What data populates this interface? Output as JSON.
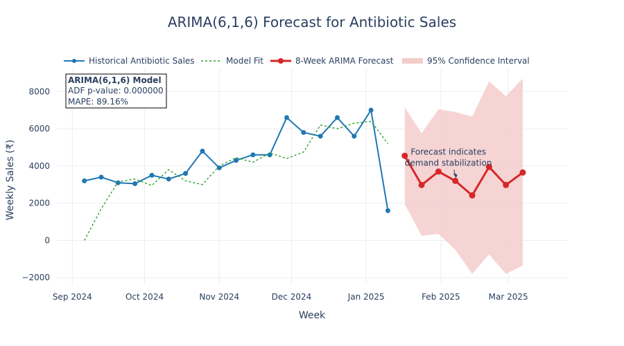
{
  "chart_data": {
    "type": "line",
    "title": "ARIMA(6,1,6) Forecast for Antibiotic Sales",
    "xlabel": "Week",
    "ylabel": "Weekly Sales (₹)",
    "xlim": [
      "2024-08-25",
      "2025-03-26"
    ],
    "ylim": [
      -2400,
      9200
    ],
    "grid": true,
    "legend_position": "top",
    "x_ticks": [
      {
        "date": "2024-09-01",
        "label": "Sep 2024"
      },
      {
        "date": "2024-10-01",
        "label": "Oct 2024"
      },
      {
        "date": "2024-11-01",
        "label": "Nov 2024"
      },
      {
        "date": "2024-12-01",
        "label": "Dec 2024"
      },
      {
        "date": "2025-01-01",
        "label": "Jan 2025"
      },
      {
        "date": "2025-02-01",
        "label": "Feb 2025"
      },
      {
        "date": "2025-03-01",
        "label": "Mar 2025"
      }
    ],
    "y_ticks": [
      {
        "value": -2000,
        "label": "−2000"
      },
      {
        "value": 0,
        "label": "0"
      },
      {
        "value": 2000,
        "label": "2000"
      },
      {
        "value": 4000,
        "label": "4000"
      },
      {
        "value": 6000,
        "label": "6000"
      },
      {
        "value": 8000,
        "label": "8000"
      }
    ],
    "series": [
      {
        "name": "Historical Antibiotic Sales",
        "color": "#1f77b4",
        "style": "solid-markers",
        "x": [
          "2024-09-06",
          "2024-09-13",
          "2024-09-20",
          "2024-09-27",
          "2024-10-04",
          "2024-10-11",
          "2024-10-18",
          "2024-10-25",
          "2024-11-01",
          "2024-11-08",
          "2024-11-15",
          "2024-11-22",
          "2024-11-29",
          "2024-12-06",
          "2024-12-13",
          "2024-12-20",
          "2024-12-27",
          "2025-01-03",
          "2025-01-10"
        ],
        "y": [
          3200,
          3400,
          3100,
          3050,
          3500,
          3300,
          3600,
          4800,
          3900,
          4300,
          4600,
          4600,
          6600,
          5800,
          5600,
          6600,
          5600,
          7000,
          1600
        ]
      },
      {
        "name": "Model Fit",
        "color": "#2ca02c",
        "style": "dotted",
        "x": [
          "2024-09-06",
          "2024-09-13",
          "2024-09-20",
          "2024-09-27",
          "2024-10-04",
          "2024-10-11",
          "2024-10-18",
          "2024-10-25",
          "2024-11-01",
          "2024-11-08",
          "2024-11-15",
          "2024-11-22",
          "2024-11-29",
          "2024-12-06",
          "2024-12-13",
          "2024-12-20",
          "2024-12-27",
          "2025-01-03",
          "2025-01-10"
        ],
        "y": [
          0,
          1700,
          3150,
          3300,
          2950,
          3800,
          3200,
          3000,
          4000,
          4450,
          4200,
          4700,
          4400,
          4750,
          6200,
          6000,
          6300,
          6400,
          5200
        ]
      },
      {
        "name": "8-Week ARIMA Forecast",
        "color": "#d62728",
        "style": "solid-markers",
        "x": [
          "2025-01-17",
          "2025-01-24",
          "2025-01-31",
          "2025-02-07",
          "2025-02-14",
          "2025-02-21",
          "2025-02-28",
          "2025-03-07"
        ],
        "y": [
          4550,
          2980,
          3700,
          3200,
          2420,
          3950,
          2980,
          3650
        ]
      }
    ],
    "confidence_interval": {
      "name": "95% Confidence Interval",
      "color": "#f4cccc",
      "x": [
        "2025-01-10",
        "2025-01-17",
        "2025-01-24",
        "2025-01-31",
        "2025-02-07",
        "2025-02-14",
        "2025-02-21",
        "2025-02-28",
        "2025-03-07"
      ],
      "upper": [
        null,
        7150,
        5750,
        7050,
        6900,
        6650,
        8550,
        7750,
        8700
      ],
      "lower": [
        null,
        1950,
        250,
        350,
        -500,
        -1800,
        -750,
        -1800,
        -1350
      ]
    },
    "annotations": [
      {
        "lines": [
          "Forecast indicates",
          "demand stabilization"
        ],
        "arrow_to": {
          "x": "2025-02-07",
          "y": 3350
        }
      }
    ],
    "info_box": {
      "title": "ARIMA(6,1,6) Model",
      "lines": [
        "ADF p-value: 0.000000",
        "MAPE: 89.16%"
      ]
    }
  }
}
